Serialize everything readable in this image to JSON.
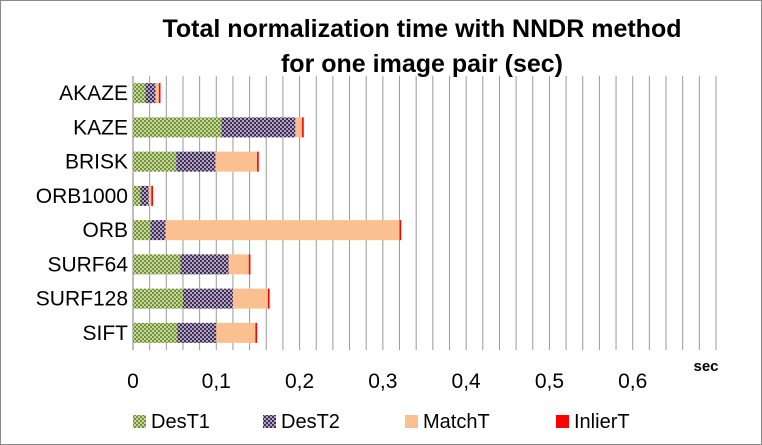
{
  "chart_data": {
    "type": "bar",
    "orientation": "horizontal",
    "stacked": true,
    "title_line1": "Total normalization time  with NNDR method",
    "title_line2": "for one image pair (sec)",
    "x_unit": "sec",
    "xlim": [
      0,
      0.7
    ],
    "x_ticks": [
      "0",
      "0,1",
      "0,2",
      "0,3",
      "0,4",
      "0,5",
      "0,6"
    ],
    "grid": "vertical",
    "legend_position": "bottom",
    "categories": [
      "AKAZE",
      "KAZE",
      "BRISK",
      "ORB1000",
      "ORB",
      "SURF64",
      "SURF128",
      "SIFT"
    ],
    "series": [
      {
        "name": "DesT1",
        "color": "#9bbb59",
        "pattern": "checker",
        "values": [
          0.015,
          0.106,
          0.052,
          0.009,
          0.021,
          0.057,
          0.06,
          0.053
        ]
      },
      {
        "name": "DesT2",
        "color": "#8064a2",
        "pattern": "checker",
        "values": [
          0.012,
          0.089,
          0.047,
          0.01,
          0.018,
          0.058,
          0.06,
          0.047
        ]
      },
      {
        "name": "MatchT",
        "color": "#fac090",
        "pattern": "solid",
        "values": [
          0.004,
          0.008,
          0.05,
          0.003,
          0.281,
          0.024,
          0.042,
          0.047
        ]
      },
      {
        "name": "InlierT",
        "color": "#ff0000",
        "pattern": "solid",
        "values": [
          0.002,
          0.002,
          0.002,
          0.002,
          0.002,
          0.002,
          0.002,
          0.002
        ]
      }
    ]
  }
}
